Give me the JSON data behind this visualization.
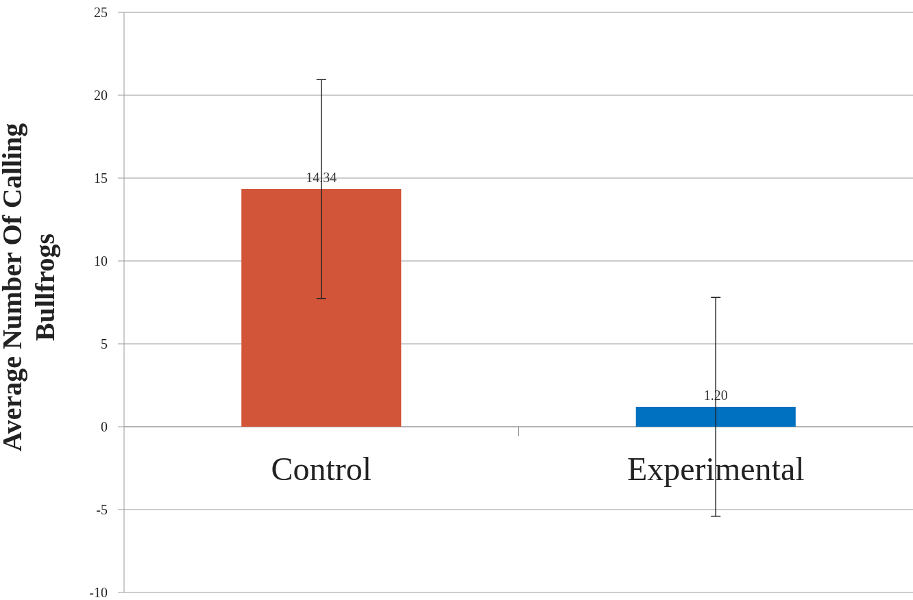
{
  "chart_data": {
    "type": "bar",
    "ylabel": "Average Number Of Calling Bullfrogs",
    "categories": [
      "Control",
      "Experimental"
    ],
    "values": [
      14.34,
      1.2
    ],
    "colors": [
      "#d35539",
      "#0070c0"
    ],
    "errors": [
      6.6,
      6.6
    ],
    "value_labels": [
      "14.34",
      "1.20"
    ],
    "ylim": [
      -10,
      25
    ],
    "yticks": [
      -10,
      -5,
      0,
      5,
      10,
      15,
      20,
      25
    ],
    "grid": "y"
  }
}
